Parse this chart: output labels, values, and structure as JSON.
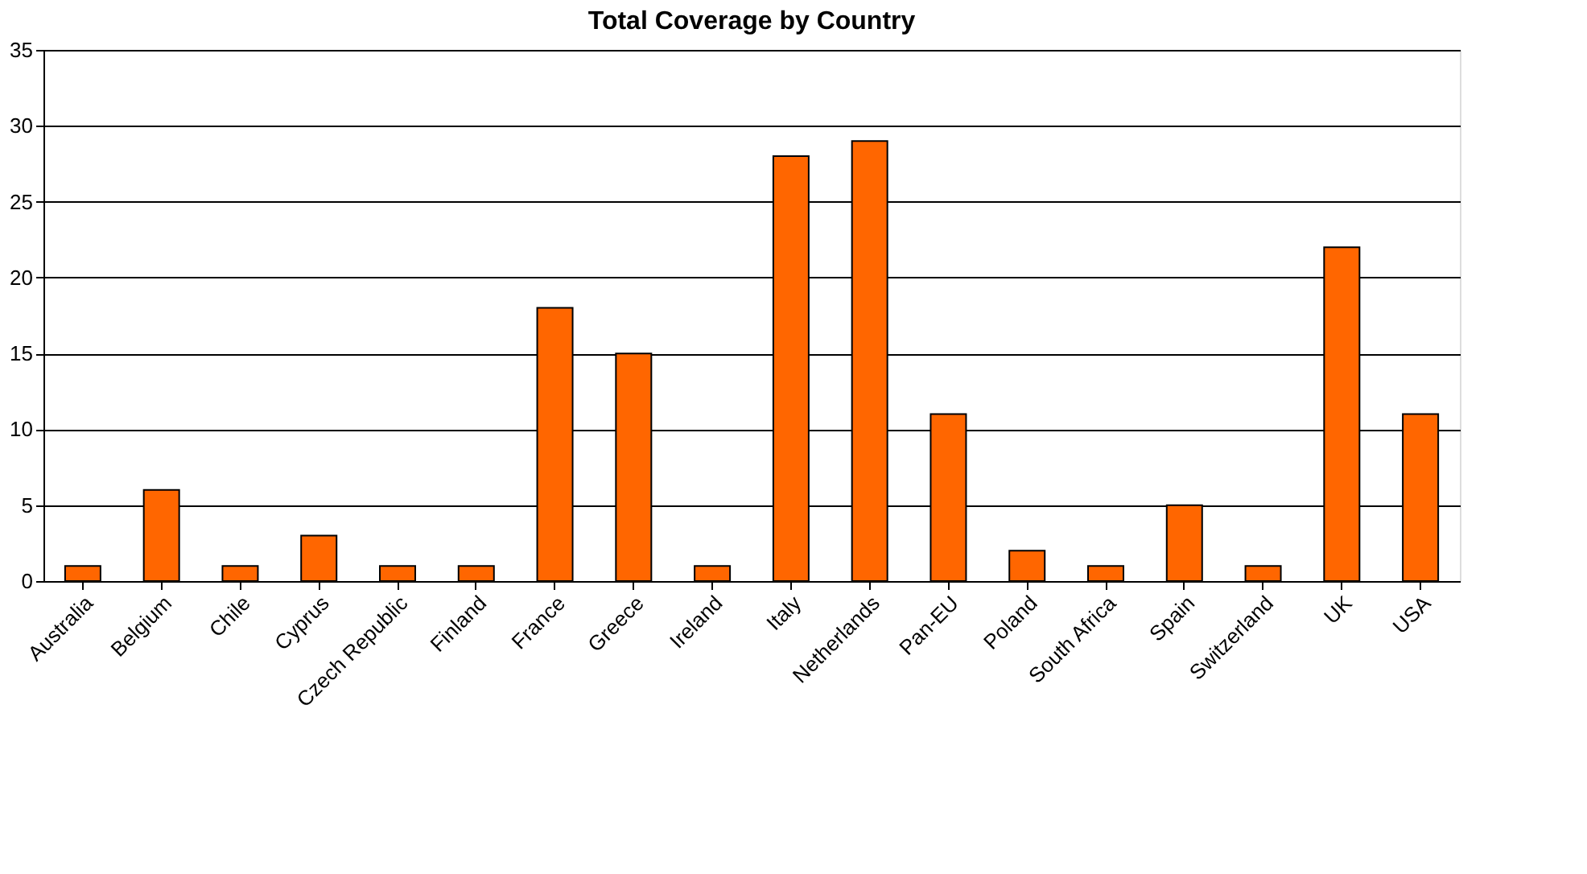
{
  "chart_data": {
    "type": "bar",
    "title": "Total Coverage by Country",
    "categories": [
      "Australia",
      "Belgium",
      "Chile",
      "Cyprus",
      "Czech Republic",
      "Finland",
      "France",
      "Greece",
      "Ireland",
      "Italy",
      "Netherlands",
      "Pan-EU",
      "Poland",
      "South Africa",
      "Spain",
      "Switzerland",
      "UK",
      "USA"
    ],
    "values": [
      1,
      6,
      1,
      3,
      1,
      1,
      18,
      15,
      1,
      28,
      29,
      11,
      2,
      1,
      5,
      1,
      22,
      11
    ],
    "color": "#ff6600",
    "ylim": [
      0,
      35
    ],
    "yticks": [
      0,
      5,
      10,
      15,
      20,
      25,
      30,
      35
    ],
    "grid": "y"
  }
}
